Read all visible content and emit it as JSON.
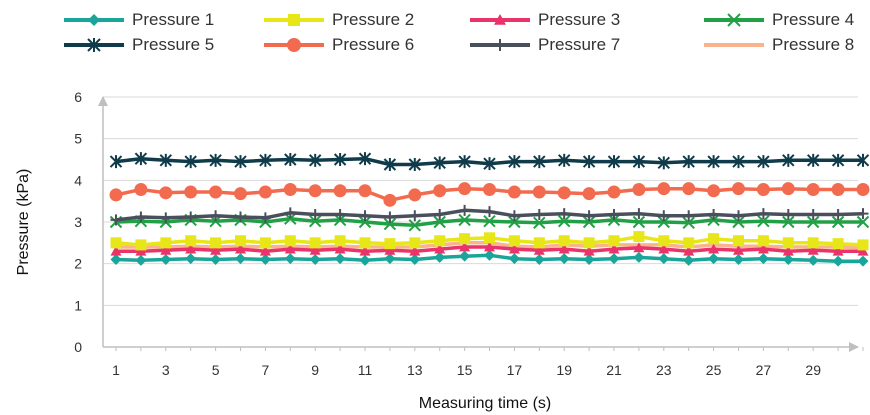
{
  "chart_data": {
    "type": "line",
    "title": "",
    "xlabel": "Measuring time (s)",
    "ylabel": "Pressure (kPa)",
    "ylim": [
      0,
      6
    ],
    "yticks": [
      0,
      1,
      2,
      3,
      4,
      5,
      6
    ],
    "xlim": [
      1,
      31
    ],
    "xticks": [
      1,
      3,
      5,
      7,
      9,
      11,
      13,
      15,
      17,
      19,
      21,
      23,
      25,
      27,
      29
    ],
    "x": [
      1,
      2,
      3,
      4,
      5,
      6,
      7,
      8,
      9,
      10,
      11,
      12,
      13,
      14,
      15,
      16,
      17,
      18,
      19,
      20,
      21,
      22,
      23,
      24,
      25,
      26,
      27,
      28,
      29,
      30,
      31
    ],
    "grid": "horizontal",
    "legend_position": "top",
    "series": [
      {
        "name": "Pressure 1",
        "color": "#1aa59a",
        "marker": "diamond",
        "values": [
          2.1,
          2.08,
          2.1,
          2.12,
          2.1,
          2.12,
          2.1,
          2.12,
          2.1,
          2.12,
          2.08,
          2.12,
          2.1,
          2.15,
          2.18,
          2.2,
          2.12,
          2.1,
          2.12,
          2.1,
          2.12,
          2.15,
          2.12,
          2.08,
          2.12,
          2.1,
          2.12,
          2.1,
          2.08,
          2.06,
          2.06
        ]
      },
      {
        "name": "Pressure 2",
        "color": "#e6e619",
        "marker": "square",
        "values": [
          2.5,
          2.45,
          2.5,
          2.55,
          2.5,
          2.55,
          2.5,
          2.55,
          2.5,
          2.55,
          2.5,
          2.48,
          2.5,
          2.55,
          2.6,
          2.62,
          2.55,
          2.5,
          2.55,
          2.5,
          2.55,
          2.65,
          2.55,
          2.5,
          2.6,
          2.55,
          2.55,
          2.5,
          2.5,
          2.48,
          2.45
        ]
      },
      {
        "name": "Pressure 3",
        "color": "#e8346b",
        "marker": "triangle",
        "values": [
          2.3,
          2.3,
          2.32,
          2.35,
          2.32,
          2.35,
          2.3,
          2.35,
          2.32,
          2.35,
          2.3,
          2.32,
          2.3,
          2.35,
          2.4,
          2.4,
          2.35,
          2.32,
          2.35,
          2.3,
          2.35,
          2.38,
          2.35,
          2.3,
          2.35,
          2.32,
          2.35,
          2.3,
          2.32,
          2.3,
          2.3
        ]
      },
      {
        "name": "Pressure 4",
        "color": "#22a046",
        "marker": "x",
        "values": [
          3.0,
          3.02,
          3.0,
          3.05,
          3.02,
          3.05,
          3.0,
          3.08,
          3.02,
          3.05,
          3.0,
          2.95,
          2.92,
          3.0,
          3.05,
          3.02,
          3.0,
          2.98,
          3.02,
          3.0,
          3.05,
          3.0,
          3.0,
          2.98,
          3.05,
          3.0,
          3.02,
          3.0,
          3.0,
          3.0,
          3.0
        ]
      },
      {
        "name": "Pressure 5",
        "color": "#0f3b4a",
        "marker": "star",
        "values": [
          4.45,
          4.52,
          4.48,
          4.45,
          4.48,
          4.45,
          4.48,
          4.5,
          4.48,
          4.5,
          4.52,
          4.38,
          4.38,
          4.42,
          4.45,
          4.4,
          4.45,
          4.45,
          4.48,
          4.45,
          4.45,
          4.45,
          4.42,
          4.45,
          4.45,
          4.45,
          4.45,
          4.48,
          4.48,
          4.48,
          4.48
        ]
      },
      {
        "name": "Pressure 6",
        "color": "#f26b4f",
        "marker": "circle",
        "values": [
          3.65,
          3.78,
          3.7,
          3.72,
          3.72,
          3.68,
          3.72,
          3.78,
          3.75,
          3.75,
          3.75,
          3.52,
          3.65,
          3.75,
          3.8,
          3.78,
          3.72,
          3.72,
          3.7,
          3.68,
          3.72,
          3.78,
          3.8,
          3.8,
          3.75,
          3.8,
          3.78,
          3.8,
          3.78,
          3.78,
          3.78
        ]
      },
      {
        "name": "Pressure 7",
        "color": "#4a4f5c",
        "marker": "plus",
        "values": [
          3.05,
          3.12,
          3.1,
          3.12,
          3.15,
          3.12,
          3.1,
          3.22,
          3.18,
          3.18,
          3.15,
          3.12,
          3.15,
          3.18,
          3.28,
          3.25,
          3.15,
          3.18,
          3.2,
          3.15,
          3.18,
          3.2,
          3.15,
          3.15,
          3.18,
          3.15,
          3.2,
          3.18,
          3.18,
          3.18,
          3.2
        ]
      },
      {
        "name": "Pressure 8",
        "color": "#f9b48e",
        "marker": "none",
        "values": [
          2.4,
          2.4,
          2.4,
          2.42,
          2.4,
          2.42,
          2.4,
          2.42,
          2.4,
          2.42,
          2.4,
          2.4,
          2.4,
          2.45,
          2.5,
          2.5,
          2.42,
          2.4,
          2.45,
          2.42,
          2.45,
          2.45,
          2.45,
          2.4,
          2.45,
          2.42,
          2.42,
          2.4,
          2.4,
          2.4,
          2.38
        ]
      }
    ]
  }
}
